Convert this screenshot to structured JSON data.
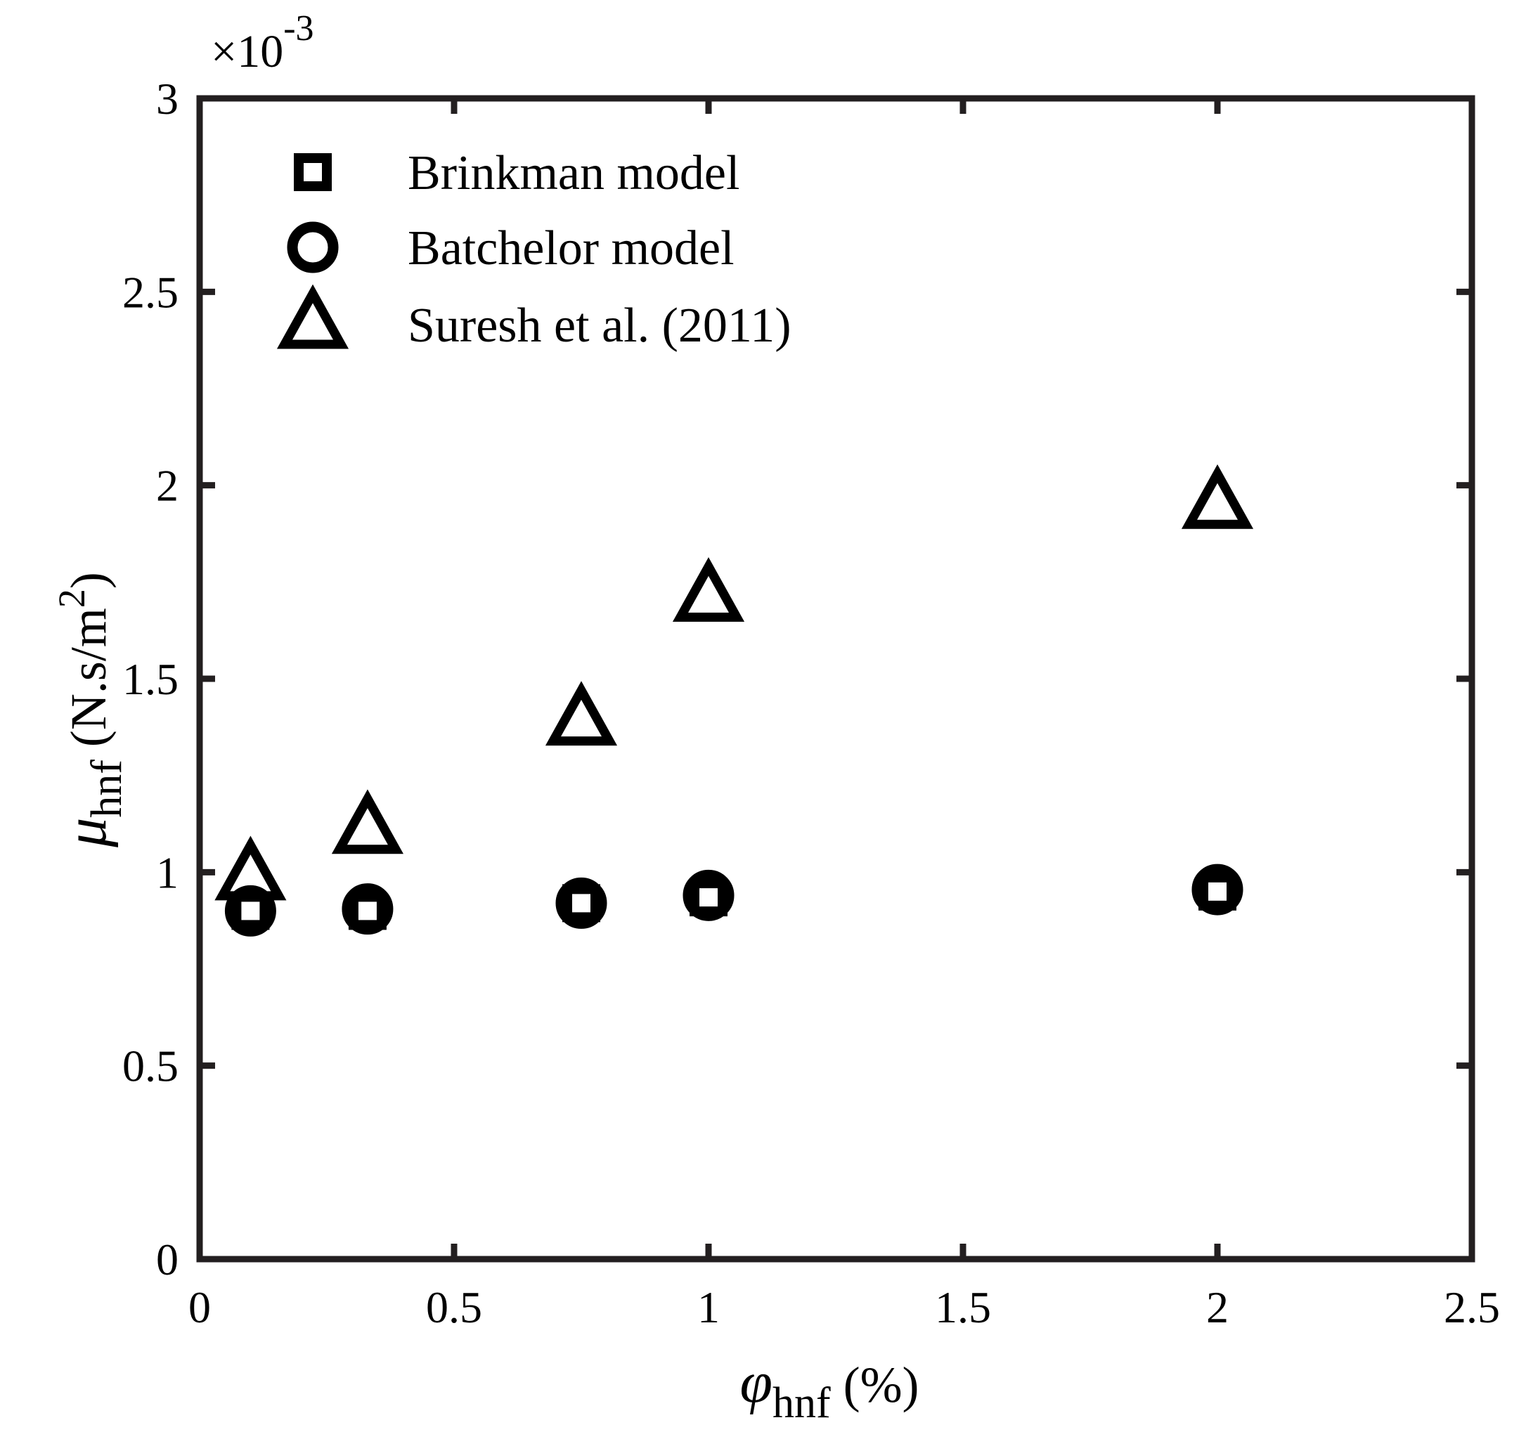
{
  "chart_data": {
    "type": "scatter",
    "xlabel": {
      "symbol": "φ",
      "subscript": "hnf",
      "suffix": " (%)"
    },
    "ylabel": {
      "symbol": "μ",
      "subscript": "hnf",
      "unit_text": " (N.s/m",
      "unit_superscript": "2",
      "unit_close": ")"
    },
    "y_multiplier": {
      "prefix": "×10",
      "exponent": "-3"
    },
    "xlim": [
      0,
      2.5
    ],
    "ylim": [
      0,
      3
    ],
    "xticks": [
      0,
      0.5,
      1,
      1.5,
      2,
      2.5
    ],
    "xtick_labels": [
      "0",
      "0.5",
      "1",
      "1.5",
      "2",
      "2.5"
    ],
    "yticks": [
      0,
      0.5,
      1,
      1.5,
      2,
      2.5,
      3
    ],
    "ytick_labels": [
      "0",
      "0.5",
      "1",
      "1.5",
      "2",
      "2.5",
      "3"
    ],
    "grid": false,
    "legend_position": "top-left",
    "series": [
      {
        "name": "Brinkman model",
        "marker": "square",
        "x": [
          0.1,
          0.33,
          0.75,
          1.0,
          2.0
        ],
        "y": [
          0.9,
          0.9,
          0.92,
          0.935,
          0.95
        ]
      },
      {
        "name": "Batchelor model",
        "marker": "circle",
        "x": [
          0.1,
          0.33,
          0.75,
          1.0,
          2.0
        ],
        "y": [
          0.9,
          0.905,
          0.92,
          0.94,
          0.955
        ]
      },
      {
        "name": "Suresh et al. (2011)",
        "marker": "triangle",
        "x": [
          0.1,
          0.33,
          0.75,
          1.0,
          2.0
        ],
        "y": [
          0.99,
          1.11,
          1.39,
          1.71,
          1.95
        ]
      }
    ],
    "colors": {
      "axes": "#231f20",
      "markers": "#000000",
      "background": "#ffffff"
    }
  }
}
